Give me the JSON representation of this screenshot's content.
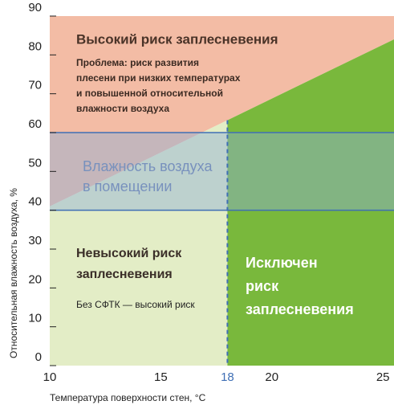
{
  "chart_data": {
    "type": "risk_map",
    "xlabel": "Температура поверхности стен, °C",
    "ylabel": "Относительная влажность воздуха, %",
    "xlim": [
      10,
      25.5
    ],
    "ylim": [
      0,
      90
    ],
    "xticks": [
      10,
      15,
      18,
      20,
      25
    ],
    "yticks": [
      0,
      10,
      20,
      30,
      40,
      50,
      60,
      70,
      80,
      90
    ],
    "threshold_x": 18,
    "boundary": {
      "x": [
        10,
        25.5
      ],
      "y": [
        41,
        84
      ]
    },
    "humidity_band": {
      "values": [
        40,
        60
      ],
      "label": [
        "Влажность воздуха",
        "в помещении"
      ],
      "color": "#8fb0d6",
      "line_color": "#3f6fb5"
    },
    "regions": {
      "high": {
        "color": "#f3bca5",
        "title": "Высокий риск заплесневения",
        "text": [
          "Проблема: риск развития",
          "плесени при низких температурах",
          "и повышенной относительной",
          "влажности воздуха"
        ]
      },
      "low": {
        "color": "#e3edc6",
        "title": [
          "Невысокий риск",
          "заплесневения"
        ],
        "text": "Без СФТК — высокий риск"
      },
      "excluded": {
        "color": "#79b83c",
        "title": [
          "Исключен",
          "риск",
          "заплесневения"
        ]
      }
    }
  }
}
